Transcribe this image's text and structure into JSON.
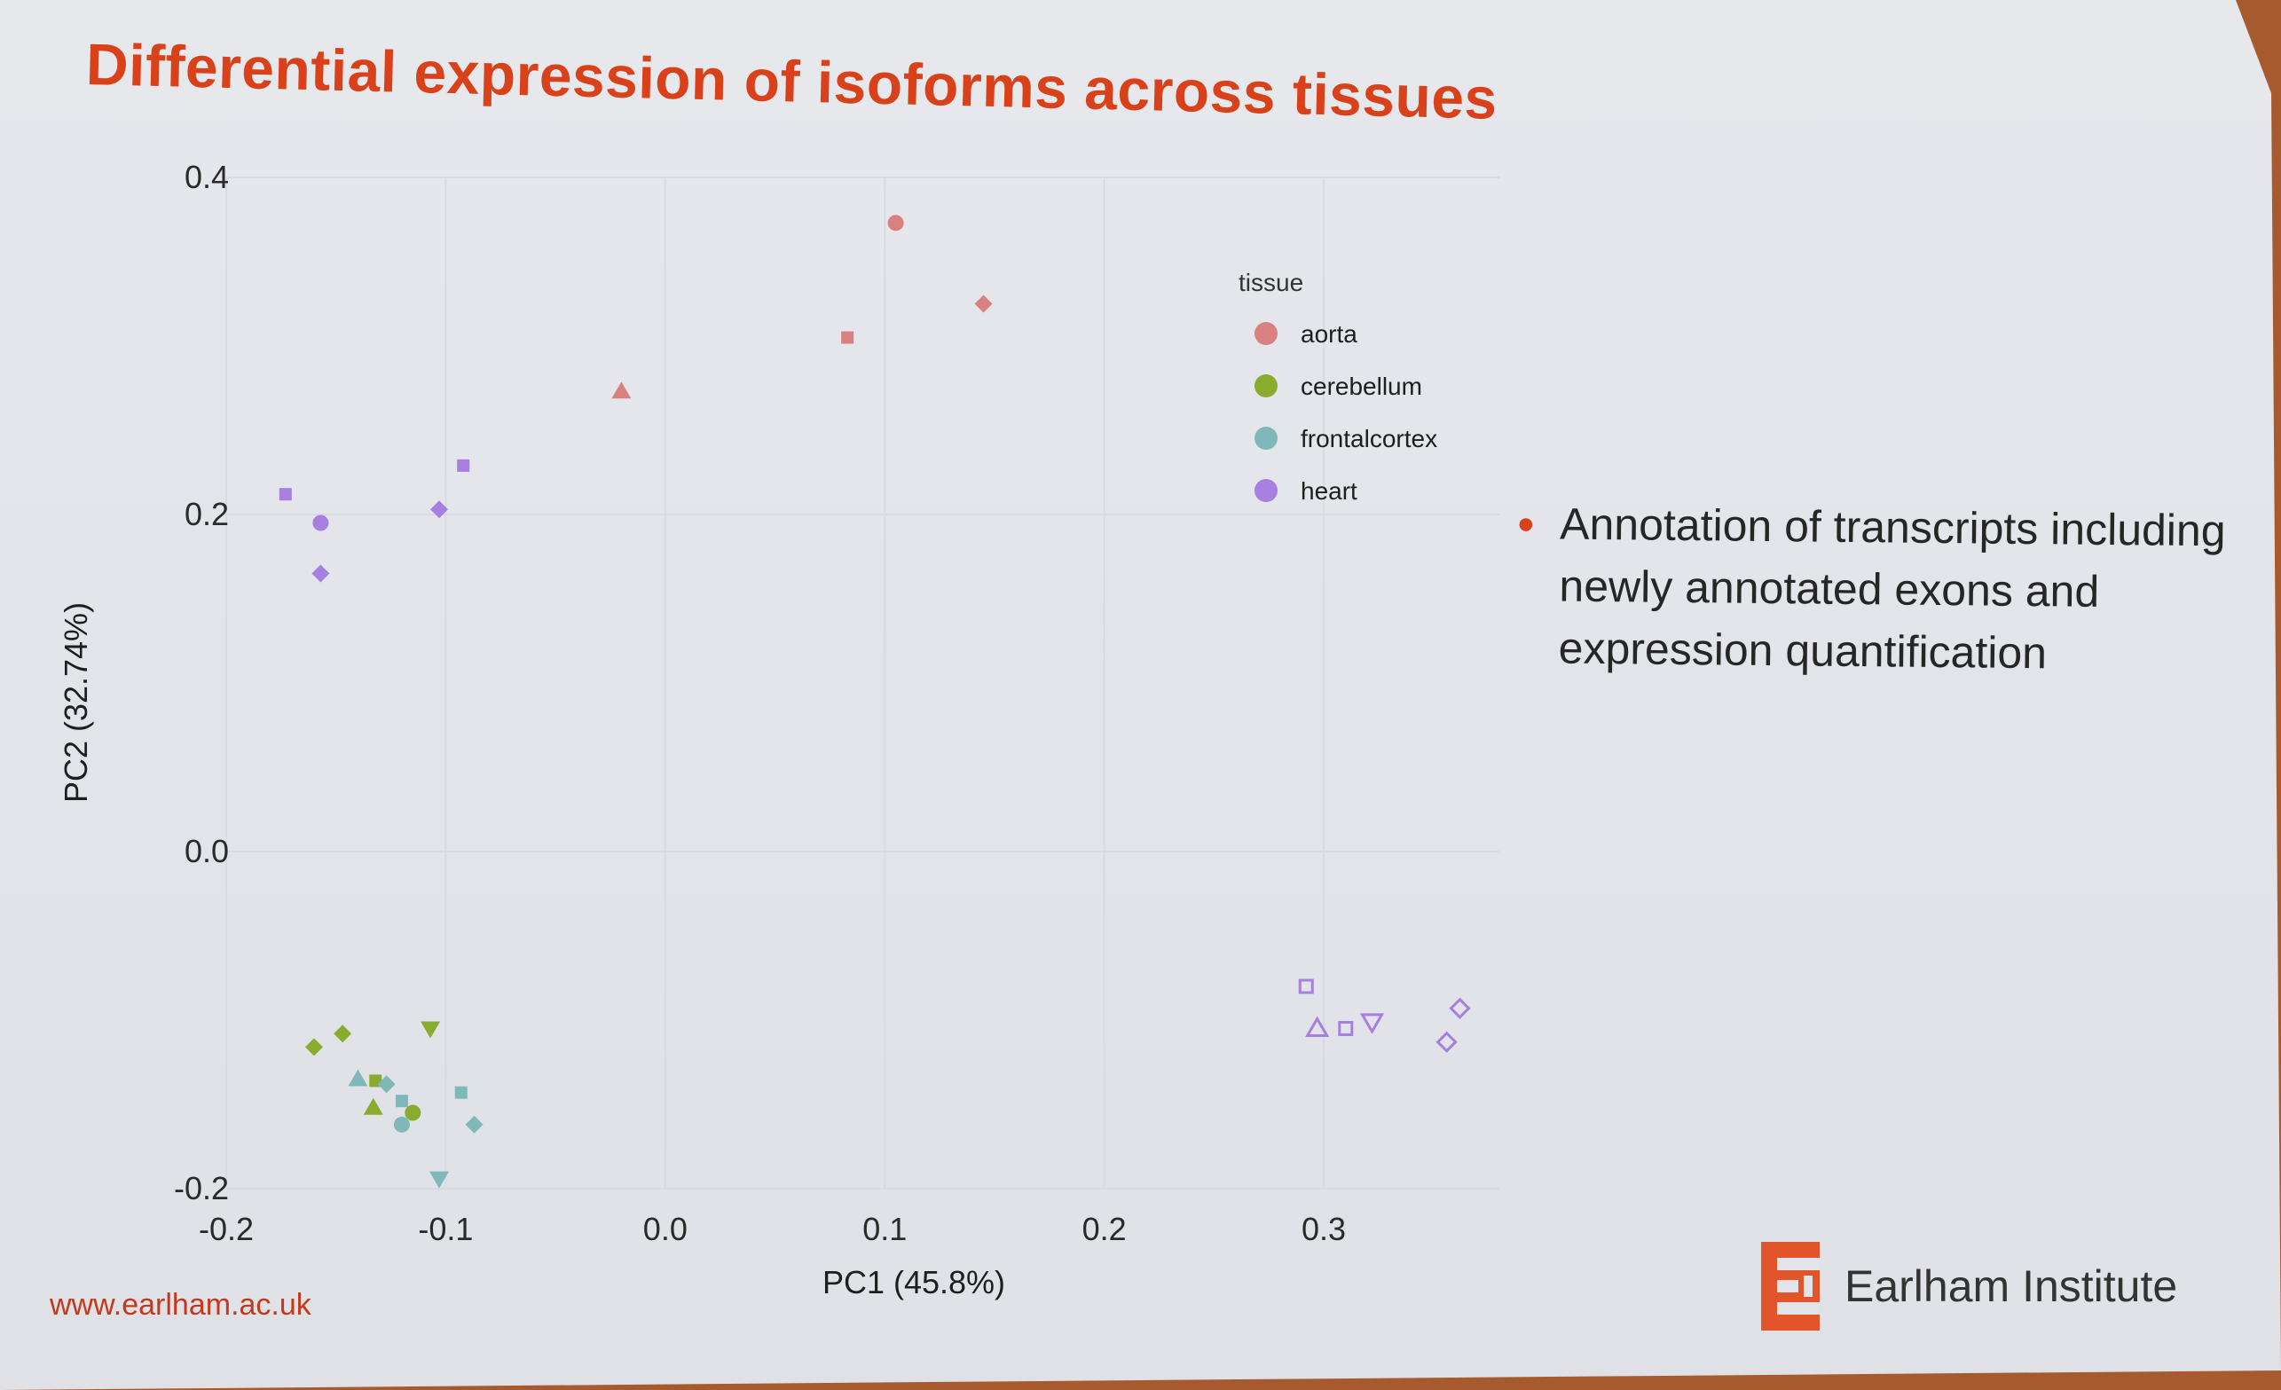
{
  "slide": {
    "title": "Differential expression of isoforms across tissues",
    "bullet": "Annotation of transcripts including newly annotated exons and expression quantification",
    "footer_url": "www.earlham.ac.uk",
    "logo_text": "Earlham Institute",
    "accent_color": "#d9411b",
    "logo_icon": "earlham-e-logo-icon"
  },
  "chart_data": {
    "type": "scatter",
    "title": "",
    "xlabel": "PC1 (45.8%)",
    "ylabel": "PC2 (32.74%)",
    "xlim": [
      -0.2,
      0.38
    ],
    "ylim": [
      -0.2,
      0.4
    ],
    "xticks": [
      "-0.2",
      "-0.1",
      "0.0",
      "0.1",
      "0.2",
      "0.3"
    ],
    "yticks": [
      "0.4",
      "0.2",
      "0.0",
      "-0.2"
    ],
    "grid": true,
    "legend": {
      "title": "tissue",
      "position": "top-right",
      "entries": [
        {
          "label": "aorta",
          "color": "#d98080"
        },
        {
          "label": "cerebellum",
          "color": "#8aac2e"
        },
        {
          "label": "frontalcortex",
          "color": "#7fb8b8"
        },
        {
          "label": "heart",
          "color": "#a67fe0"
        }
      ]
    },
    "series": [
      {
        "name": "aorta",
        "color": "#d98080",
        "points": [
          {
            "x": 0.105,
            "y": 0.373,
            "shape": "circle"
          },
          {
            "x": 0.145,
            "y": 0.325,
            "shape": "diamond"
          },
          {
            "x": 0.083,
            "y": 0.305,
            "shape": "square"
          },
          {
            "x": -0.02,
            "y": 0.273,
            "shape": "triangle"
          }
        ]
      },
      {
        "name": "cerebellum",
        "color": "#8aac2e",
        "points": [
          {
            "x": -0.107,
            "y": -0.105,
            "shape": "triangle-down"
          },
          {
            "x": -0.147,
            "y": -0.108,
            "shape": "diamond"
          },
          {
            "x": -0.16,
            "y": -0.116,
            "shape": "diamond"
          },
          {
            "x": -0.132,
            "y": -0.136,
            "shape": "square"
          },
          {
            "x": -0.133,
            "y": -0.152,
            "shape": "triangle"
          },
          {
            "x": -0.115,
            "y": -0.155,
            "shape": "circle"
          }
        ]
      },
      {
        "name": "frontalcortex",
        "color": "#7fb8b8",
        "points": [
          {
            "x": -0.14,
            "y": -0.135,
            "shape": "triangle"
          },
          {
            "x": -0.127,
            "y": -0.138,
            "shape": "diamond"
          },
          {
            "x": -0.12,
            "y": -0.148,
            "shape": "square"
          },
          {
            "x": -0.093,
            "y": -0.143,
            "shape": "square"
          },
          {
            "x": -0.12,
            "y": -0.162,
            "shape": "circle"
          },
          {
            "x": -0.087,
            "y": -0.162,
            "shape": "diamond"
          },
          {
            "x": -0.103,
            "y": -0.194,
            "shape": "triangle-down"
          }
        ]
      },
      {
        "name": "heart",
        "color": "#a67fe0",
        "points": [
          {
            "x": -0.173,
            "y": 0.212,
            "shape": "square"
          },
          {
            "x": -0.157,
            "y": 0.195,
            "shape": "circle"
          },
          {
            "x": -0.157,
            "y": 0.165,
            "shape": "diamond"
          },
          {
            "x": -0.103,
            "y": 0.203,
            "shape": "diamond"
          },
          {
            "x": -0.092,
            "y": 0.229,
            "shape": "square"
          },
          {
            "x": 0.292,
            "y": -0.08,
            "shape": "square-open"
          },
          {
            "x": 0.297,
            "y": -0.105,
            "shape": "triangle-open"
          },
          {
            "x": 0.31,
            "y": -0.105,
            "shape": "square-open"
          },
          {
            "x": 0.322,
            "y": -0.101,
            "shape": "triangle-down-open"
          },
          {
            "x": 0.362,
            "y": -0.093,
            "shape": "diamond-open"
          },
          {
            "x": 0.356,
            "y": -0.113,
            "shape": "diamond-open"
          }
        ]
      }
    ]
  }
}
